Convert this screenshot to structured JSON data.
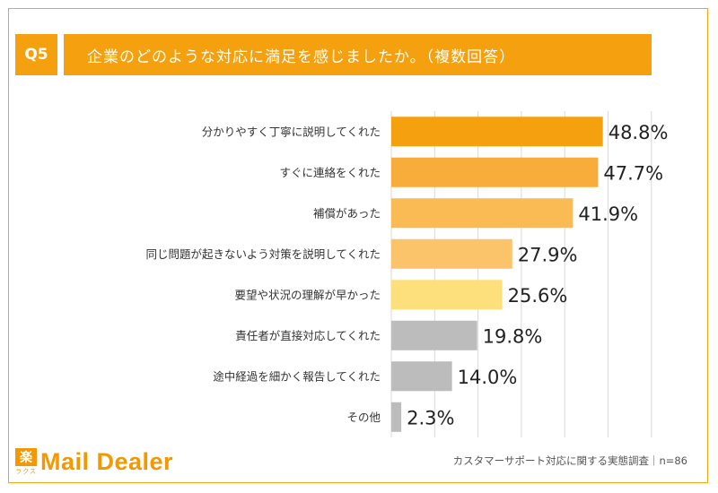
{
  "question": {
    "badge": "Q5",
    "text": "企業のどのような対応に満足を感じましたか。（複数回答）"
  },
  "chart_data": {
    "type": "bar",
    "orientation": "horizontal",
    "categories": [
      "分かりやすく丁寧に説明してくれた",
      "すぐに連絡をくれた",
      "補償があった",
      "同じ問題が起きないよう対策を説明してくれた",
      "要望や状況の理解が早かった",
      "責任者が直接対応してくれた",
      "途中経過を細かく報告してくれた",
      "その他"
    ],
    "values": [
      48.8,
      47.7,
      41.9,
      27.9,
      25.6,
      19.8,
      14.0,
      2.3
    ],
    "value_labels": [
      "48.8%",
      "47.7%",
      "41.9%",
      "27.9%",
      "25.6%",
      "19.8%",
      "14.0%",
      "2.3%"
    ],
    "colors": [
      "#f5a00f",
      "#f8ad3a",
      "#fabb55",
      "#fcc46a",
      "#fde07c",
      "#bcbcbc",
      "#bcbcbc",
      "#bcbcbc"
    ],
    "xlim": [
      0,
      60
    ],
    "grid": true
  },
  "footer": {
    "logo_kanji": "楽",
    "logo_kana": "ラクス",
    "logo_text": "Mail Dealer",
    "source": "カスタマーサポート対応に関する実態調査｜n=86"
  }
}
